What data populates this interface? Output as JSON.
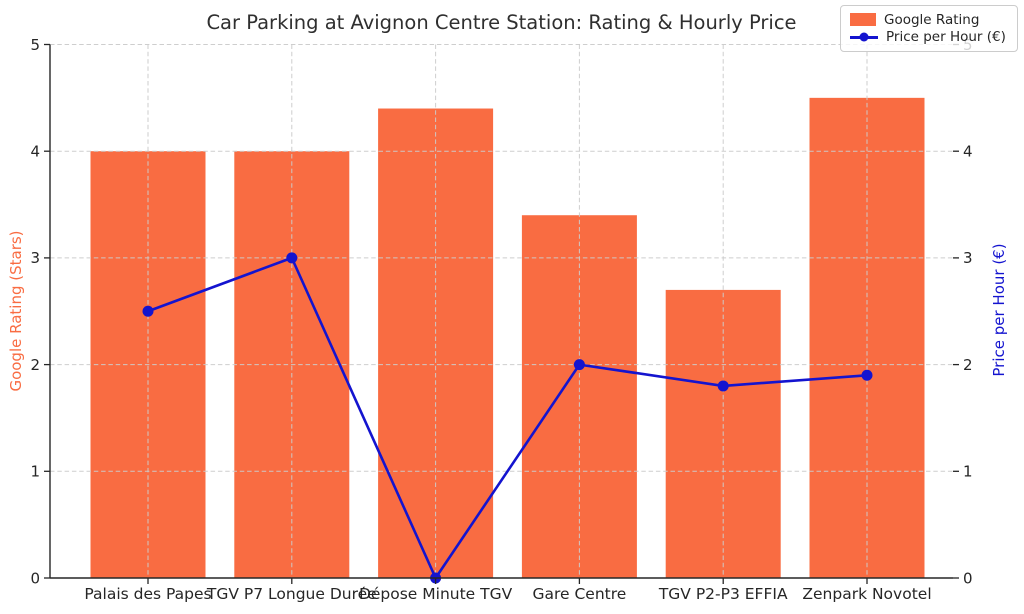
{
  "chart_data": {
    "type": "combo",
    "title": "Car Parking at Avignon Centre Station: Rating & Hourly Price",
    "categories": [
      "Palais des Papes",
      "TGV P7 Longue Durée",
      "Dépose Minute TGV",
      "Gare Centre",
      "TGV P2-P3 EFFIA",
      "Zenpark Novotel"
    ],
    "series": [
      {
        "name": "Google Rating",
        "type": "bar",
        "yaxis": "left",
        "color": "#f96c42",
        "values": [
          4.0,
          4.0,
          4.4,
          3.4,
          2.7,
          4.5
        ]
      },
      {
        "name": "Price per Hour (€)",
        "type": "line",
        "yaxis": "right",
        "color": "#1414cf",
        "values": [
          2.5,
          3.0,
          0.0,
          2.0,
          1.8,
          1.9
        ]
      }
    ],
    "ylabel_left": "Google Rating (Stars)",
    "ylabel_right": "Price per Hour (€)",
    "ylim_left": [
      0,
      5
    ],
    "ylim_right": [
      0,
      5
    ],
    "yticks": [
      0,
      1,
      2,
      3,
      4,
      5
    ],
    "grid": true,
    "grid_style": "dashed",
    "legend": {
      "position": "upper right",
      "labels": [
        "Google Rating",
        "Price per Hour (€)"
      ]
    },
    "colors": {
      "bar": "#f96c42",
      "line": "#1414cf",
      "grid": "#cccccc",
      "axis": "#262626",
      "title": "#2f2f2f"
    }
  }
}
